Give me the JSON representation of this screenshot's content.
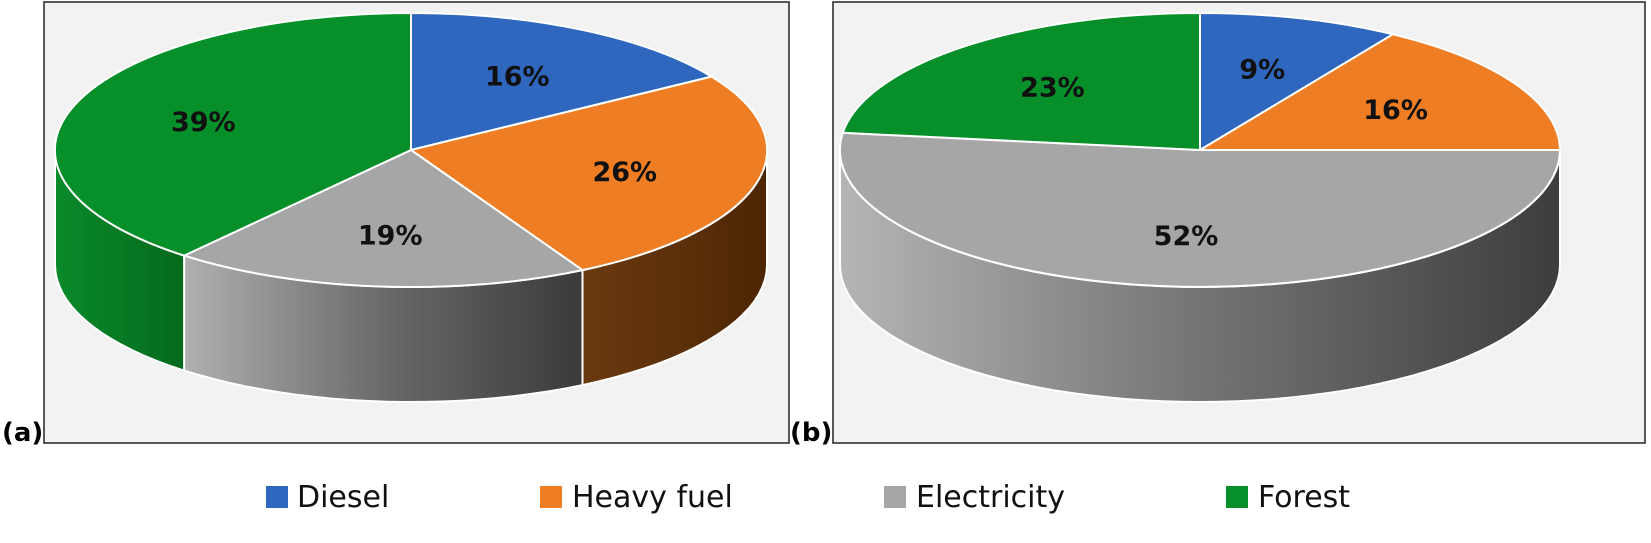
{
  "colors": {
    "diesel": "#2e67bd",
    "heavy_fuel": "#ee7d24",
    "electricity": "#a6a6a6",
    "forest": "#07902a",
    "panel_bg": "#f2f2f2",
    "panel_border": "#222222"
  },
  "legend": [
    {
      "label": "Diesel",
      "color_key": "diesel"
    },
    {
      "label": "Heavy fuel",
      "color_key": "heavy_fuel"
    },
    {
      "label": "Electricity",
      "color_key": "electricity"
    },
    {
      "label": "Forest",
      "color_key": "forest"
    }
  ],
  "chart_data": [
    {
      "type": "pie",
      "panel_label": "(a)",
      "title": "",
      "categories": [
        "Diesel",
        "Heavy fuel",
        "Electricity",
        "Forest"
      ],
      "values": [
        16,
        26,
        19,
        39
      ],
      "labels": [
        "16%",
        "26%",
        "19%",
        "39%"
      ],
      "color_keys": [
        "diesel",
        "heavy_fuel",
        "electricity",
        "forest"
      ]
    },
    {
      "type": "pie",
      "panel_label": "(b)",
      "title": "",
      "categories": [
        "Diesel",
        "Heavy fuel",
        "Electricity",
        "Forest"
      ],
      "values": [
        9,
        16,
        52,
        23
      ],
      "labels": [
        "9%",
        "16%",
        "52%",
        "23%"
      ],
      "color_keys": [
        "diesel",
        "heavy_fuel",
        "electricity",
        "forest"
      ]
    }
  ]
}
